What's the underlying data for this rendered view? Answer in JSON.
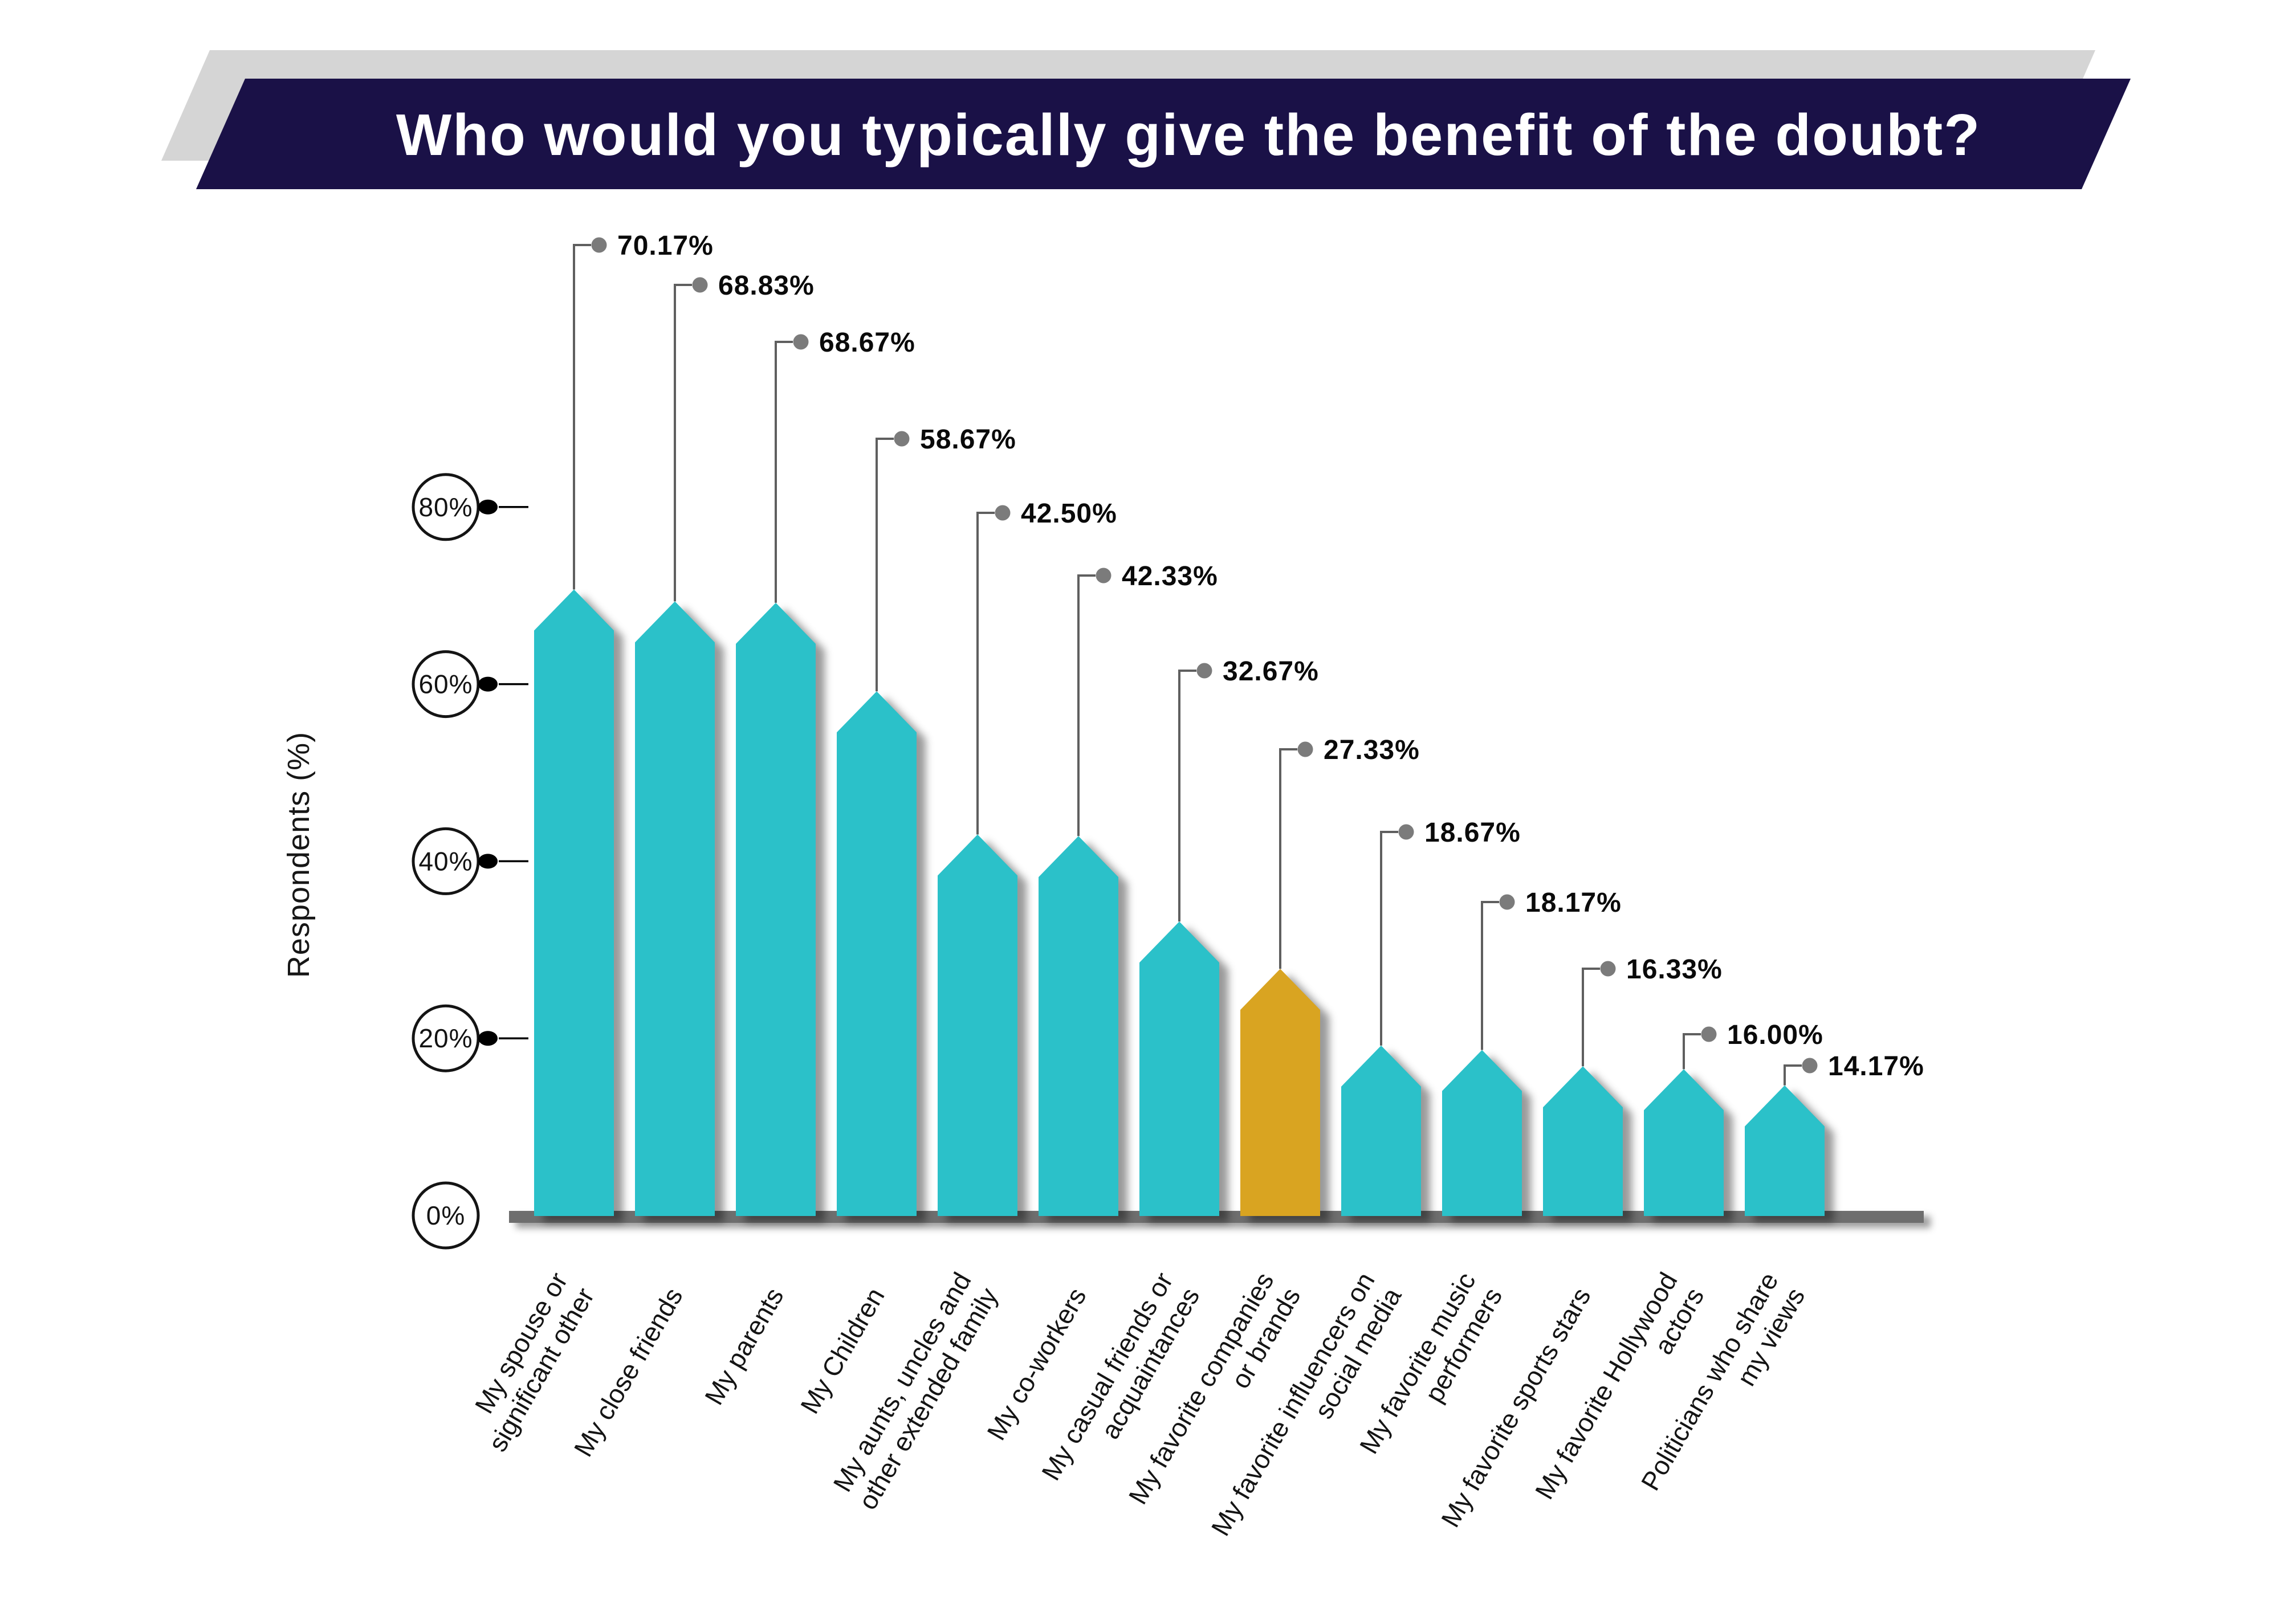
{
  "title": "Who would you typically give the benefit of the doubt?",
  "colors": {
    "banner_navy": "#1A1147",
    "banner_shadow_gray": "#D5D5D5",
    "bar_teal": "#2BC1C9",
    "bar_highlight_gold": "#D9A421",
    "baseline_gray": "#6E6E6E",
    "leader_line": "#5F5F5F",
    "leader_dot": "#7B7B7B",
    "tick_dot": "#000000",
    "circle_stroke": "#141414",
    "text_dark": "#0D0D0D",
    "background": "#FFFFFF"
  },
  "chart_data": {
    "type": "bar",
    "title": "Who would you typically give the benefit of the doubt?",
    "xlabel": "",
    "ylabel": "Respondents (%)",
    "ylim": [
      0,
      80
    ],
    "grid": false,
    "legend": false,
    "yticks": [
      "0%",
      "20%",
      "40%",
      "60%",
      "80%"
    ],
    "ytick_values": [
      0,
      20,
      40,
      60,
      80
    ],
    "categories": [
      "My spouse or significant other",
      "My close friends",
      "My parents",
      "My Children",
      "My aunts, uncles and other extended family",
      "My co-workers",
      "My casual friends or acquaintances",
      "My favorite companies or brands",
      "My favorite influencers on social media",
      "My favorite music performers",
      "My favorite sports stars",
      "My favorite Hollywood actors",
      "Politicians who share my views"
    ],
    "category_lines": [
      [
        "My spouse or",
        "significant other"
      ],
      [
        "My close friends"
      ],
      [
        "My parents"
      ],
      [
        "My Children"
      ],
      [
        "My aunts, uncles and",
        "other extended family"
      ],
      [
        "My co-workers"
      ],
      [
        "My casual friends or",
        "acquaintances"
      ],
      [
        "My favorite companies",
        "or brands"
      ],
      [
        "My favorite influencers on",
        "social media"
      ],
      [
        "My favorite music",
        "performers"
      ],
      [
        "My favorite sports stars"
      ],
      [
        "My favorite Hollywood",
        "actors"
      ],
      [
        "Politicians who share",
        "my views"
      ]
    ],
    "values": [
      70.17,
      68.83,
      68.67,
      58.67,
      42.5,
      42.33,
      32.67,
      27.33,
      18.67,
      18.17,
      16.33,
      16.0,
      14.17
    ],
    "value_labels": [
      "70.17%",
      "68.83%",
      "68.67%",
      "58.67%",
      "42.50%",
      "42.33%",
      "32.67%",
      "27.33%",
      "18.67%",
      "18.17%",
      "16.33%",
      "16.00%",
      "14.17%"
    ],
    "highlight_index": 7
  }
}
